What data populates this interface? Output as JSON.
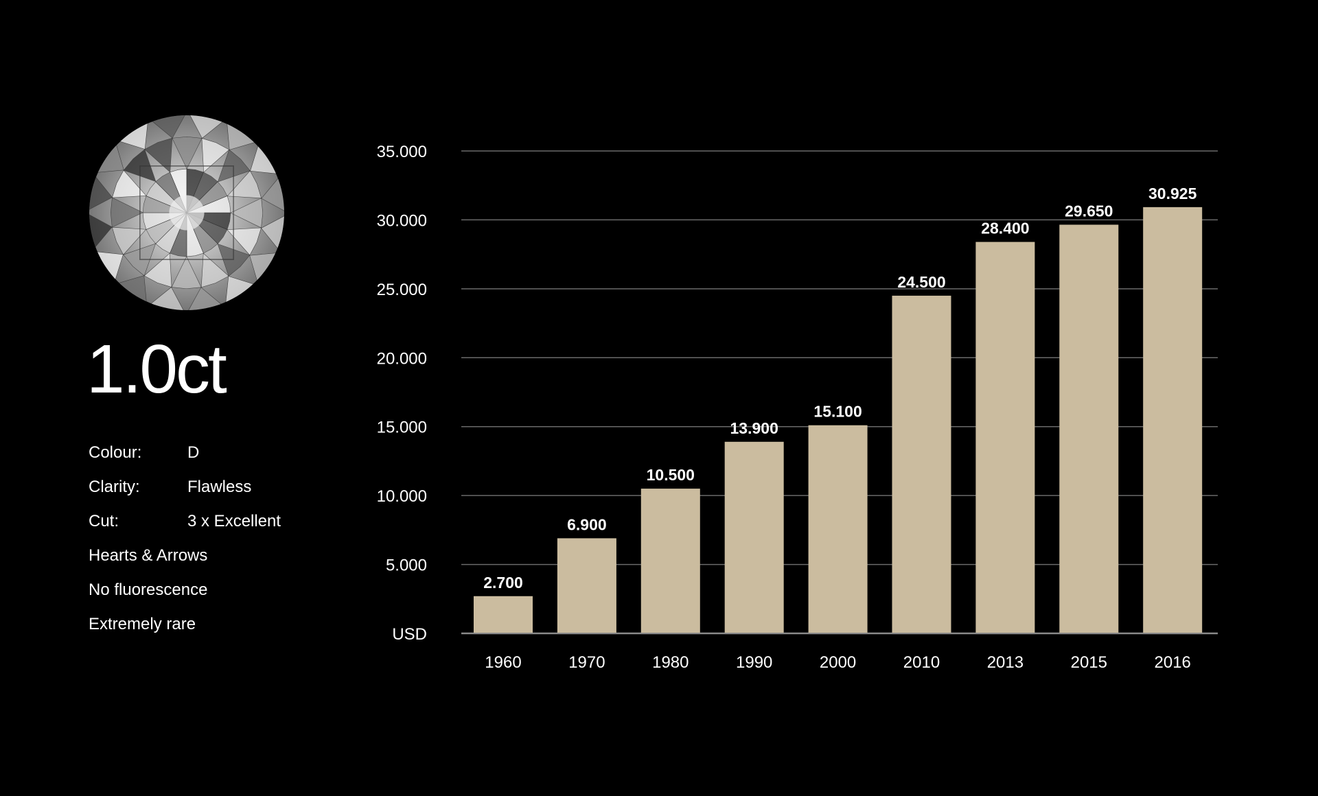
{
  "carat": "1.0ct",
  "specs": [
    {
      "label": "Colour:",
      "value": "D"
    },
    {
      "label": "Clarity:",
      "value": "Flawless"
    },
    {
      "label": "Cut:",
      "value": "3 x Excellent"
    },
    {
      "label": "Hearts & Arrows",
      "value": ""
    },
    {
      "label": "No fluorescence",
      "value": ""
    },
    {
      "label": "Extremely rare",
      "value": ""
    }
  ],
  "colors": {
    "bar": "#cbbc9f",
    "grid": "#6a6a6a",
    "background": "#000000",
    "text": "#ffffff"
  },
  "chart_data": {
    "type": "bar",
    "categories": [
      "1960",
      "1970",
      "1980",
      "1990",
      "2000",
      "2010",
      "2013",
      "2015",
      "2016"
    ],
    "values": [
      2700,
      6900,
      10500,
      13900,
      15100,
      24500,
      28400,
      29650,
      30925
    ],
    "value_labels": [
      "2.700",
      "6.900",
      "10.500",
      "13.900",
      "15.100",
      "24.500",
      "28.400",
      "29.650",
      "30.925"
    ],
    "ylabel": "USD",
    "ylim": [
      0,
      35000
    ],
    "yticks": [
      0,
      5000,
      10000,
      15000,
      20000,
      25000,
      30000,
      35000
    ],
    "ytick_labels": [
      "USD",
      "5.000",
      "10.000",
      "15.000",
      "20.000",
      "25.000",
      "30.000",
      "35.000"
    ],
    "grid": true,
    "title": "",
    "xlabel": ""
  }
}
